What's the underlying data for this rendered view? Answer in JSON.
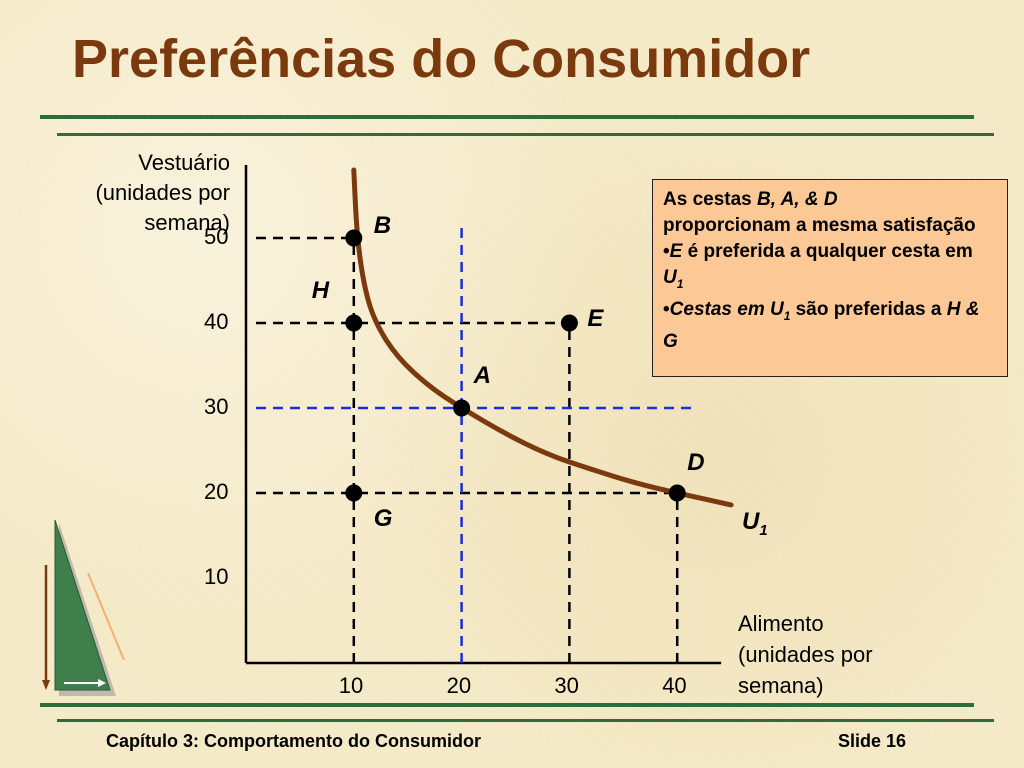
{
  "slide": {
    "title": "Preferências do Consumidor",
    "footer_left": "Capítulo 3: Comportamento do Consumidor",
    "footer_right": "Slide 16",
    "rule_color": "#2f6b3b",
    "title_color": "#7a3a0d"
  },
  "note": {
    "line1_pre": "As cestas ",
    "line1_em": "B, A, & D",
    "line2": "proporcionam a mesma satisfação",
    "bullet1_em": "E",
    "bullet1_rest": "  é preferida a qualquer cesta em ",
    "bullet1_sym": "U",
    "bullet1_sub": "1",
    "bullet2_em": "Cestas em U",
    "bullet2_sub": "1",
    "bullet2_rest": " são preferidas a ",
    "bullet2_em2": "H & G",
    "bullet": "•",
    "background": "#fbc896"
  },
  "chart_data": {
    "type": "scatter",
    "xlabel": "Alimento\n(unidades por\n semana)",
    "ylabel": "Vestuário\n(unidades por\nsemana)",
    "xlim": [
      0,
      45
    ],
    "ylim": [
      0,
      58
    ],
    "xticks": [
      10,
      20,
      30,
      40
    ],
    "yticks": [
      10,
      20,
      30,
      40,
      50
    ],
    "points": [
      {
        "name": "B",
        "x": 10,
        "y": 50
      },
      {
        "name": "H",
        "x": 10,
        "y": 40
      },
      {
        "name": "E",
        "x": 30,
        "y": 40
      },
      {
        "name": "A",
        "x": 20,
        "y": 30
      },
      {
        "name": "D",
        "x": 40,
        "y": 20
      },
      {
        "name": "G",
        "x": 10,
        "y": 20
      }
    ],
    "curve": {
      "name": "U",
      "subscript": "1",
      "color": "#7a3a0d",
      "points": [
        [
          10,
          58
        ],
        [
          10.3,
          50
        ],
        [
          11,
          44
        ],
        [
          12,
          40
        ],
        [
          14,
          36
        ],
        [
          17,
          32.5
        ],
        [
          20,
          30
        ],
        [
          24,
          27
        ],
        [
          28,
          24.5
        ],
        [
          32,
          22.8
        ],
        [
          36,
          21.2
        ],
        [
          40,
          20
        ],
        [
          45,
          18.6
        ]
      ]
    },
    "guides_black": [
      {
        "from": [
          0,
          50
        ],
        "to": [
          10,
          50
        ]
      },
      {
        "from": [
          0,
          40
        ],
        "to": [
          30,
          40
        ]
      },
      {
        "from": [
          0,
          20
        ],
        "to": [
          40,
          20
        ]
      },
      {
        "from": [
          10,
          0
        ],
        "to": [
          10,
          50
        ]
      },
      {
        "from": [
          30,
          0
        ],
        "to": [
          30,
          40
        ]
      },
      {
        "from": [
          40,
          0
        ],
        "to": [
          40,
          20
        ]
      }
    ],
    "guides_blue": [
      {
        "from": [
          0,
          30
        ],
        "to": [
          45,
          30
        ]
      },
      {
        "from": [
          20,
          0
        ],
        "to": [
          20,
          52
        ]
      }
    ],
    "blue_color": "#1a2fd6"
  }
}
